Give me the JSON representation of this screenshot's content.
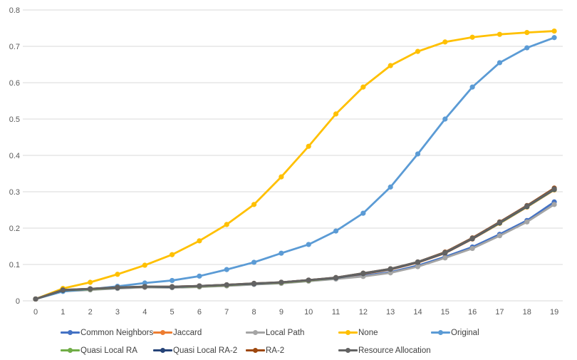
{
  "chart_data": {
    "type": "line",
    "title": "",
    "xlabel": "",
    "ylabel": "",
    "x": [
      0,
      1,
      2,
      3,
      4,
      5,
      6,
      7,
      8,
      9,
      10,
      11,
      12,
      13,
      14,
      15,
      16,
      17,
      18,
      19
    ],
    "x_tick_labels": [
      "0",
      "1",
      "2",
      "3",
      "4",
      "5",
      "6",
      "7",
      "8",
      "9",
      "10",
      "11",
      "12",
      "13",
      "14",
      "15",
      "16",
      "17",
      "18",
      "19"
    ],
    "y_ticks": [
      0,
      0.1,
      0.2,
      0.3,
      0.4,
      0.5,
      0.6,
      0.7,
      0.8
    ],
    "y_tick_labels": [
      "0",
      "0.1",
      "0.2",
      "0.3",
      "0.4",
      "0.5",
      "0.6",
      "0.7",
      "0.8"
    ],
    "ylim": [
      0,
      0.8
    ],
    "grid": "horizontal",
    "gridline_color": "#d9d9d9",
    "tick_label_color": "#595959",
    "legend_position": "bottom",
    "marker_style": "circle",
    "series": [
      {
        "name": "Common Neighbors",
        "color": "#4472C4",
        "values": [
          0.005,
          0.027,
          0.031,
          0.035,
          0.038,
          0.037,
          0.039,
          0.042,
          0.046,
          0.049,
          0.055,
          0.061,
          0.069,
          0.079,
          0.097,
          0.121,
          0.148,
          0.183,
          0.221,
          0.272
        ]
      },
      {
        "name": "Jaccard",
        "color": "#ED7D31",
        "values": [
          0.005,
          0.029,
          0.032,
          0.036,
          0.038,
          0.038,
          0.04,
          0.043,
          0.047,
          0.05,
          0.056,
          0.063,
          0.074,
          0.086,
          0.105,
          0.131,
          0.17,
          0.213,
          0.258,
          0.305
        ]
      },
      {
        "name": "Local Path",
        "color": "#A5A5A5",
        "values": [
          0.005,
          0.026,
          0.03,
          0.034,
          0.037,
          0.036,
          0.038,
          0.041,
          0.045,
          0.048,
          0.054,
          0.06,
          0.067,
          0.077,
          0.094,
          0.118,
          0.144,
          0.179,
          0.217,
          0.265
        ]
      },
      {
        "name": "None",
        "color": "#FFC000",
        "values": [
          0.005,
          0.034,
          0.051,
          0.073,
          0.098,
          0.127,
          0.165,
          0.21,
          0.265,
          0.341,
          0.425,
          0.514,
          0.588,
          0.647,
          0.686,
          0.712,
          0.725,
          0.733,
          0.738,
          0.742
        ]
      },
      {
        "name": "Original",
        "color": "#5B9BD5",
        "values": [
          0.005,
          0.026,
          0.032,
          0.04,
          0.049,
          0.056,
          0.068,
          0.086,
          0.106,
          0.131,
          0.155,
          0.192,
          0.241,
          0.313,
          0.404,
          0.5,
          0.588,
          0.655,
          0.696,
          0.724
        ]
      },
      {
        "name": "Quasi Local RA",
        "color": "#70AD47",
        "values": [
          0.005,
          0.029,
          0.032,
          0.036,
          0.039,
          0.038,
          0.04,
          0.043,
          0.047,
          0.05,
          0.056,
          0.063,
          0.075,
          0.087,
          0.106,
          0.132,
          0.171,
          0.214,
          0.259,
          0.306
        ]
      },
      {
        "name": "Quasi Local RA-2",
        "color": "#264478",
        "values": [
          0.005,
          0.029,
          0.033,
          0.036,
          0.039,
          0.038,
          0.041,
          0.044,
          0.047,
          0.051,
          0.057,
          0.063,
          0.075,
          0.087,
          0.106,
          0.132,
          0.171,
          0.215,
          0.26,
          0.307
        ]
      },
      {
        "name": "RA-2",
        "color": "#9E480E",
        "values": [
          0.005,
          0.03,
          0.033,
          0.037,
          0.039,
          0.039,
          0.041,
          0.044,
          0.048,
          0.051,
          0.057,
          0.064,
          0.076,
          0.088,
          0.107,
          0.134,
          0.173,
          0.217,
          0.262,
          0.31
        ]
      },
      {
        "name": "Resource Allocation",
        "color": "#636363",
        "values": [
          0.005,
          0.03,
          0.033,
          0.037,
          0.039,
          0.039,
          0.041,
          0.044,
          0.048,
          0.051,
          0.057,
          0.064,
          0.076,
          0.088,
          0.107,
          0.133,
          0.172,
          0.216,
          0.261,
          0.308
        ]
      }
    ]
  }
}
